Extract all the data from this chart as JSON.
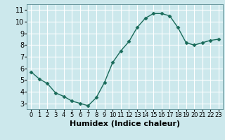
{
  "x": [
    0,
    1,
    2,
    3,
    4,
    5,
    6,
    7,
    8,
    9,
    10,
    11,
    12,
    13,
    14,
    15,
    16,
    17,
    18,
    19,
    20,
    21,
    22,
    23
  ],
  "y": [
    5.7,
    5.1,
    4.7,
    3.9,
    3.6,
    3.2,
    3.0,
    2.8,
    3.5,
    4.8,
    6.5,
    7.5,
    8.3,
    9.5,
    10.3,
    10.7,
    10.7,
    10.5,
    9.5,
    8.2,
    8.0,
    8.2,
    8.4,
    8.5
  ],
  "xlabel": "Humidex (Indice chaleur)",
  "ylim": [
    2.5,
    11.5
  ],
  "xlim": [
    -0.5,
    23.5
  ],
  "yticks": [
    3,
    4,
    5,
    6,
    7,
    8,
    9,
    10,
    11
  ],
  "xticks": [
    0,
    1,
    2,
    3,
    4,
    5,
    6,
    7,
    8,
    9,
    10,
    11,
    12,
    13,
    14,
    15,
    16,
    17,
    18,
    19,
    20,
    21,
    22,
    23
  ],
  "line_color": "#1a6b5a",
  "marker": "D",
  "marker_size": 2.5,
  "bg_color": "#cce8ec",
  "grid_color": "#ffffff",
  "xlabel_fontsize": 8,
  "tick_fontsize_x": 6.0,
  "tick_fontsize_y": 7.0,
  "spine_color": "#5a8a90"
}
